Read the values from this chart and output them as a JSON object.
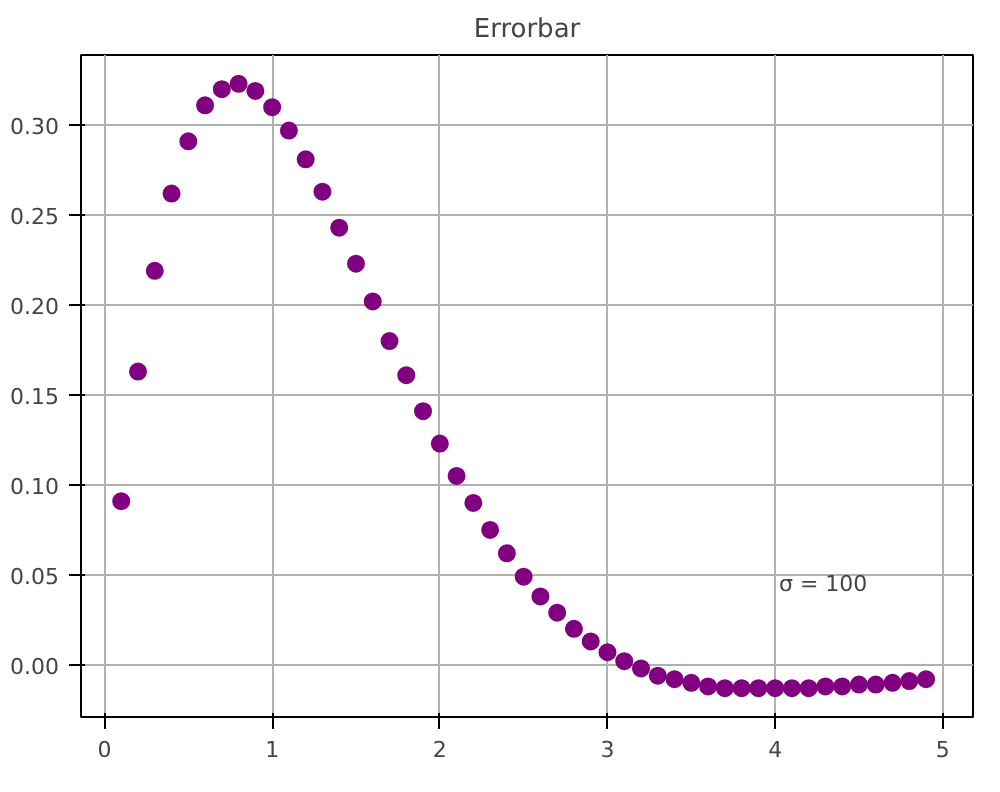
{
  "chart_data": {
    "type": "scatter",
    "title": "Errorbar",
    "x": [
      0.1,
      0.2,
      0.3,
      0.4,
      0.5,
      0.6,
      0.7,
      0.8,
      0.9,
      1.0,
      1.1,
      1.2,
      1.3,
      1.4,
      1.5,
      1.6,
      1.7,
      1.8,
      1.9,
      2.0,
      2.1,
      2.2,
      2.3,
      2.4,
      2.5,
      2.6,
      2.7,
      2.8,
      2.9,
      3.0,
      3.1,
      3.2,
      3.3,
      3.4,
      3.5,
      3.6,
      3.7,
      3.8,
      3.9,
      4.0,
      4.1,
      4.2,
      4.3,
      4.4,
      4.5,
      4.6,
      4.7,
      4.8,
      4.9
    ],
    "series": [
      {
        "color": "#800080",
        "values": [
          0.091,
          0.163,
          0.219,
          0.262,
          0.291,
          0.311,
          0.32,
          0.323,
          0.319,
          0.31,
          0.297,
          0.281,
          0.263,
          0.243,
          0.223,
          0.202,
          0.18,
          0.161,
          0.141,
          0.123,
          0.105,
          0.09,
          0.075,
          0.062,
          0.049,
          0.038,
          0.029,
          0.02,
          0.013,
          0.007,
          0.002,
          -0.002,
          -0.006,
          -0.008,
          -0.01,
          -0.012,
          -0.013,
          -0.013,
          -0.013,
          -0.013,
          -0.013,
          -0.013,
          -0.012,
          -0.012,
          -0.011,
          -0.011,
          -0.01,
          -0.009,
          -0.008
        ]
      }
    ],
    "annotations": [
      "σ = 100"
    ],
    "xlim": [
      -0.14,
      5.18
    ],
    "ylim": [
      -0.029,
      0.339
    ],
    "xticks": [
      0,
      1,
      2,
      3,
      4,
      5
    ],
    "yticks": [
      {
        "value": 0,
        "label": "0.00"
      },
      {
        "value": 0.05,
        "label": "0.05"
      },
      {
        "value": 0.1,
        "label": "0.10"
      },
      {
        "value": 0.15,
        "label": "0.15"
      },
      {
        "value": 0.2,
        "label": "0.20"
      },
      {
        "value": 0.25,
        "label": "0.25"
      },
      {
        "value": 0.3,
        "label": "0.30"
      }
    ],
    "grid": true,
    "marker": "circle"
  }
}
